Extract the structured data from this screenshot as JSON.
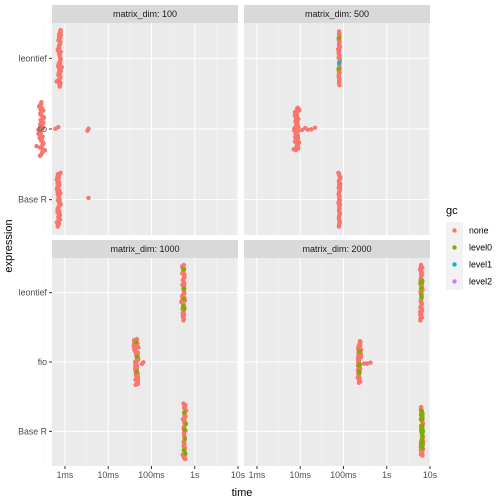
{
  "chart_data": {
    "type": "scatter",
    "xlabel": "time",
    "ylabel": "expression",
    "x_scale": "log10",
    "x_ticks": [
      {
        "value": 0.001,
        "label": "1ms"
      },
      {
        "value": 0.01,
        "label": "10ms"
      },
      {
        "value": 0.1,
        "label": "100ms"
      },
      {
        "value": 1,
        "label": "1s"
      },
      {
        "value": 10,
        "label": "10s"
      }
    ],
    "y_categories": [
      "leontief",
      "fio",
      "Base R"
    ],
    "grid": true,
    "legend": {
      "title": "gc",
      "position": "right",
      "entries": [
        {
          "label": "none",
          "color": "#F8766D"
        },
        {
          "label": "level0",
          "color": "#7CAE00"
        },
        {
          "label": "level1",
          "color": "#00BFC4"
        },
        {
          "label": "level2",
          "color": "#C77CFF"
        }
      ]
    },
    "panels": [
      {
        "strip": "matrix_dim: 100",
        "groups": [
          {
            "expression": "leontief",
            "center": 0.00075,
            "spread": 6e-05,
            "n": 45,
            "halfheight": 0.4,
            "extras": [],
            "gc_mix": []
          },
          {
            "expression": "fio",
            "center": 0.00028,
            "spread": 4e-05,
            "n": 40,
            "halfheight": 0.38,
            "extras": [
              0.0006,
              0.0007,
              0.0033,
              0.0035
            ],
            "gc_mix": []
          },
          {
            "expression": "Base R",
            "center": 0.00072,
            "spread": 5e-05,
            "n": 40,
            "halfheight": 0.38,
            "extras": [
              0.0035
            ],
            "gc_mix": []
          }
        ]
      },
      {
        "strip": "matrix_dim: 500",
        "groups": [
          {
            "expression": "leontief",
            "center": 0.079,
            "spread": 0.003,
            "n": 40,
            "halfheight": 0.38,
            "extras": [],
            "gc_mix": [
              {
                "gc": "level0",
                "n": 2
              },
              {
                "gc": "level1",
                "n": 1
              }
            ]
          },
          {
            "expression": "fio",
            "center": 0.0085,
            "spread": 0.0008,
            "n": 50,
            "halfheight": 0.3,
            "extras": [
              0.011,
              0.013,
              0.015,
              0.018,
              0.022
            ],
            "gc_mix": []
          },
          {
            "expression": "Base R",
            "center": 0.08,
            "spread": 0.003,
            "n": 40,
            "halfheight": 0.38,
            "extras": [],
            "gc_mix": []
          }
        ]
      },
      {
        "strip": "matrix_dim: 1000",
        "groups": [
          {
            "expression": "leontief",
            "center": 0.55,
            "spread": 0.03,
            "n": 40,
            "halfheight": 0.4,
            "extras": [],
            "gc_mix": [
              {
                "gc": "level0",
                "n": 5
              }
            ]
          },
          {
            "expression": "fio",
            "center": 0.045,
            "spread": 0.004,
            "n": 45,
            "halfheight": 0.33,
            "extras": [
              0.06,
              0.065
            ],
            "gc_mix": [
              {
                "gc": "level0",
                "n": 3
              }
            ]
          },
          {
            "expression": "Base R",
            "center": 0.58,
            "spread": 0.03,
            "n": 40,
            "halfheight": 0.4,
            "extras": [],
            "gc_mix": [
              {
                "gc": "level0",
                "n": 6
              }
            ]
          }
        ]
      },
      {
        "strip": "matrix_dim: 2000",
        "groups": [
          {
            "expression": "leontief",
            "center": 6.3,
            "spread": 0.3,
            "n": 40,
            "halfheight": 0.4,
            "extras": [],
            "gc_mix": [
              {
                "gc": "level0",
                "n": 6
              }
            ]
          },
          {
            "expression": "fio",
            "center": 0.23,
            "spread": 0.02,
            "n": 40,
            "halfheight": 0.3,
            "extras": [
              0.3,
              0.35,
              0.42
            ],
            "gc_mix": [
              {
                "gc": "level0",
                "n": 5
              }
            ]
          },
          {
            "expression": "Base R",
            "center": 6.5,
            "spread": 0.3,
            "n": 45,
            "halfheight": 0.35,
            "extras": [],
            "gc_mix": [
              {
                "gc": "level0",
                "n": 25
              }
            ]
          }
        ]
      }
    ]
  }
}
